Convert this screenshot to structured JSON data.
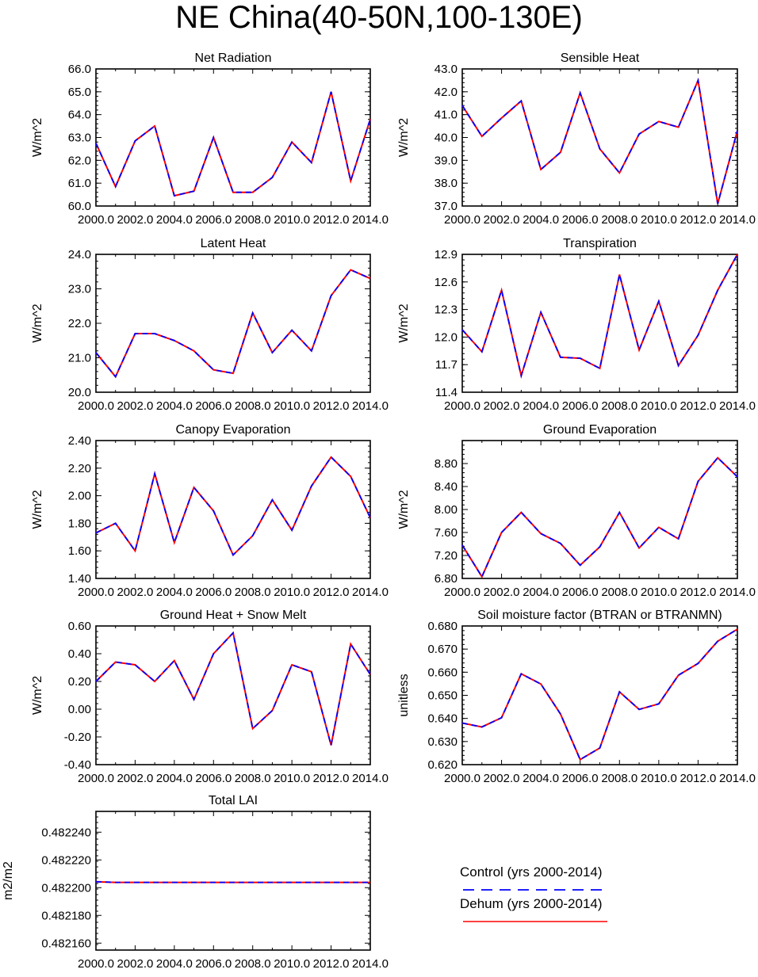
{
  "title": "NE China(40-50N,100-130E)",
  "colors": {
    "control": "#0000ff",
    "dehum": "#ff0000"
  },
  "legend": {
    "items": [
      {
        "label": "Control (yrs 2000-2014)",
        "style": "dashed",
        "color": "#0000ff"
      },
      {
        "label": "Dehum (yrs 2000-2014)",
        "style": "solid",
        "color": "#ff0000"
      }
    ]
  },
  "chart_data": [
    {
      "type": "line",
      "title": "Net Radiation",
      "ylabel": "W/m^2",
      "x": [
        2000,
        2001,
        2002,
        2003,
        2004,
        2005,
        2006,
        2007,
        2008,
        2009,
        2010,
        2011,
        2012,
        2013,
        2014
      ],
      "xticks": [
        "2000.0",
        "2002.0",
        "2004.0",
        "2006.0",
        "2008.0",
        "2010.0",
        "2012.0",
        "2014.0"
      ],
      "xlim": [
        2000,
        2014
      ],
      "ylim": [
        60.0,
        66.0
      ],
      "yticks": [
        "60.0",
        "61.0",
        "62.0",
        "63.0",
        "64.0",
        "65.0",
        "66.0"
      ],
      "series": [
        {
          "values": [
            62.75,
            60.85,
            62.85,
            63.5,
            60.45,
            60.65,
            63.0,
            60.6,
            60.6,
            61.25,
            62.8,
            61.9,
            65.0,
            61.1,
            63.8
          ]
        },
        {
          "values": [
            62.75,
            60.85,
            62.85,
            63.5,
            60.45,
            60.65,
            63.0,
            60.6,
            60.6,
            61.25,
            62.8,
            61.9,
            65.0,
            61.1,
            63.8
          ]
        }
      ]
    },
    {
      "type": "line",
      "title": "Sensible Heat",
      "ylabel": "W/m^2",
      "x": [
        2000,
        2001,
        2002,
        2003,
        2004,
        2005,
        2006,
        2007,
        2008,
        2009,
        2010,
        2011,
        2012,
        2013,
        2014
      ],
      "xticks": [
        "2000.0",
        "2002.0",
        "2004.0",
        "2006.0",
        "2008.0",
        "2010.0",
        "2012.0",
        "2014.0"
      ],
      "xlim": [
        2000,
        2014
      ],
      "ylim": [
        37.0,
        43.0
      ],
      "yticks": [
        "37.0",
        "38.0",
        "39.0",
        "40.0",
        "41.0",
        "42.0",
        "43.0"
      ],
      "series": [
        {
          "values": [
            41.4,
            40.05,
            40.85,
            41.6,
            38.6,
            39.35,
            41.95,
            39.5,
            38.45,
            40.15,
            40.7,
            40.45,
            42.5,
            37.1,
            40.3
          ]
        },
        {
          "values": [
            41.4,
            40.05,
            40.85,
            41.6,
            38.6,
            39.35,
            41.95,
            39.5,
            38.45,
            40.15,
            40.7,
            40.45,
            42.5,
            37.1,
            40.3
          ]
        }
      ]
    },
    {
      "type": "line",
      "title": "Latent Heat",
      "ylabel": "W/m^2",
      "x": [
        2000,
        2001,
        2002,
        2003,
        2004,
        2005,
        2006,
        2007,
        2008,
        2009,
        2010,
        2011,
        2012,
        2013,
        2014
      ],
      "xticks": [
        "2000.0",
        "2002.0",
        "2004.0",
        "2006.0",
        "2008.0",
        "2010.0",
        "2012.0",
        "2014.0"
      ],
      "xlim": [
        2000,
        2014
      ],
      "ylim": [
        20.0,
        24.0
      ],
      "yticks": [
        "20.0",
        "21.0",
        "22.0",
        "23.0",
        "24.0"
      ],
      "series": [
        {
          "values": [
            21.15,
            20.45,
            21.7,
            21.7,
            21.5,
            21.2,
            20.65,
            20.55,
            22.3,
            21.15,
            21.8,
            21.2,
            22.8,
            23.55,
            23.3
          ]
        },
        {
          "values": [
            21.15,
            20.45,
            21.7,
            21.7,
            21.5,
            21.2,
            20.65,
            20.55,
            22.3,
            21.15,
            21.8,
            21.2,
            22.8,
            23.55,
            23.3
          ]
        }
      ]
    },
    {
      "type": "line",
      "title": "Transpiration",
      "ylabel": "W/m^2",
      "x": [
        2000,
        2001,
        2002,
        2003,
        2004,
        2005,
        2006,
        2007,
        2008,
        2009,
        2010,
        2011,
        2012,
        2013,
        2014
      ],
      "xticks": [
        "2000.0",
        "2002.0",
        "2004.0",
        "2006.0",
        "2008.0",
        "2010.0",
        "2012.0",
        "2014.0"
      ],
      "xlim": [
        2000,
        2014
      ],
      "ylim": [
        11.4,
        12.9
      ],
      "yticks": [
        "11.4",
        "11.7",
        "12.0",
        "12.3",
        "12.6",
        "12.9"
      ],
      "series": [
        {
          "values": [
            12.08,
            11.84,
            12.51,
            11.58,
            12.27,
            11.78,
            11.77,
            11.66,
            12.68,
            11.86,
            12.39,
            11.69,
            12.02,
            12.51,
            12.9
          ]
        },
        {
          "values": [
            12.08,
            11.84,
            12.51,
            11.58,
            12.27,
            11.78,
            11.77,
            11.66,
            12.68,
            11.86,
            12.39,
            11.69,
            12.02,
            12.51,
            12.9
          ]
        }
      ]
    },
    {
      "type": "line",
      "title": "Canopy Evaporation",
      "ylabel": "W/m^2",
      "x": [
        2000,
        2001,
        2002,
        2003,
        2004,
        2005,
        2006,
        2007,
        2008,
        2009,
        2010,
        2011,
        2012,
        2013,
        2014
      ],
      "xticks": [
        "2000.0",
        "2002.0",
        "2004.0",
        "2006.0",
        "2008.0",
        "2010.0",
        "2012.0",
        "2014.0"
      ],
      "xlim": [
        2000,
        2014
      ],
      "ylim": [
        1.4,
        2.4
      ],
      "yticks": [
        "1.40",
        "1.60",
        "1.80",
        "2.00",
        "2.20",
        "2.40"
      ],
      "series": [
        {
          "values": [
            1.73,
            1.8,
            1.6,
            2.16,
            1.66,
            2.06,
            1.89,
            1.57,
            1.71,
            1.97,
            1.75,
            2.07,
            2.28,
            2.14,
            1.84
          ]
        },
        {
          "values": [
            1.73,
            1.8,
            1.6,
            2.16,
            1.66,
            2.06,
            1.89,
            1.57,
            1.71,
            1.97,
            1.75,
            2.07,
            2.28,
            2.14,
            1.84
          ]
        }
      ]
    },
    {
      "type": "line",
      "title": "Ground Evaporation",
      "ylabel": "W/m^2",
      "x": [
        2000,
        2001,
        2002,
        2003,
        2004,
        2005,
        2006,
        2007,
        2008,
        2009,
        2010,
        2011,
        2012,
        2013,
        2014
      ],
      "xticks": [
        "2000.0",
        "2002.0",
        "2004.0",
        "2006.0",
        "2008.0",
        "2010.0",
        "2012.0",
        "2014.0"
      ],
      "xlim": [
        2000,
        2014
      ],
      "ylim": [
        6.8,
        9.2
      ],
      "yticks": [
        "6.80",
        "7.20",
        "7.60",
        "8.00",
        "8.40",
        "8.80"
      ],
      "series": [
        {
          "values": [
            7.38,
            6.83,
            7.6,
            7.95,
            7.58,
            7.41,
            7.03,
            7.35,
            7.95,
            7.33,
            7.69,
            7.49,
            8.49,
            8.9,
            8.57
          ]
        },
        {
          "values": [
            7.38,
            6.83,
            7.6,
            7.95,
            7.58,
            7.41,
            7.03,
            7.35,
            7.95,
            7.33,
            7.69,
            7.49,
            8.49,
            8.9,
            8.57
          ]
        }
      ]
    },
    {
      "type": "line",
      "title": "Ground Heat + Snow Melt",
      "ylabel": "W/m^2",
      "x": [
        2000,
        2001,
        2002,
        2003,
        2004,
        2005,
        2006,
        2007,
        2008,
        2009,
        2010,
        2011,
        2012,
        2013,
        2014
      ],
      "xticks": [
        "2000.0",
        "2002.0",
        "2004.0",
        "2006.0",
        "2008.0",
        "2010.0",
        "2012.0",
        "2014.0"
      ],
      "xlim": [
        2000,
        2014
      ],
      "ylim": [
        -0.4,
        0.6
      ],
      "yticks": [
        "-0.40",
        "-0.20",
        "0.00",
        "0.20",
        "0.40",
        "0.60"
      ],
      "series": [
        {
          "values": [
            0.2,
            0.34,
            0.32,
            0.2,
            0.35,
            0.07,
            0.4,
            0.55,
            -0.14,
            -0.01,
            0.32,
            0.27,
            -0.26,
            0.47,
            0.25
          ]
        },
        {
          "values": [
            0.2,
            0.34,
            0.32,
            0.2,
            0.35,
            0.07,
            0.4,
            0.55,
            -0.14,
            -0.01,
            0.32,
            0.27,
            -0.26,
            0.47,
            0.25
          ]
        }
      ]
    },
    {
      "type": "line",
      "title": "Soil moisture factor (BTRAN or BTRANMN)",
      "ylabel": "unitless",
      "x": [
        2000,
        2001,
        2002,
        2003,
        2004,
        2005,
        2006,
        2007,
        2008,
        2009,
        2010,
        2011,
        2012,
        2013,
        2014
      ],
      "xticks": [
        "2000.0",
        "2002.0",
        "2004.0",
        "2006.0",
        "2008.0",
        "2010.0",
        "2012.0",
        "2014.0"
      ],
      "xlim": [
        2000,
        2014
      ],
      "ylim": [
        0.62,
        0.68
      ],
      "yticks": [
        "0.620",
        "0.630",
        "0.640",
        "0.650",
        "0.660",
        "0.670",
        "0.680"
      ],
      "series": [
        {
          "values": [
            0.638,
            0.6363,
            0.6403,
            0.6593,
            0.6549,
            0.6419,
            0.6222,
            0.6272,
            0.6515,
            0.6439,
            0.6463,
            0.6587,
            0.6638,
            0.6734,
            0.6786
          ]
        },
        {
          "values": [
            0.638,
            0.6363,
            0.6403,
            0.6593,
            0.6549,
            0.6419,
            0.6222,
            0.6272,
            0.6515,
            0.6439,
            0.6463,
            0.6587,
            0.6638,
            0.6734,
            0.6786
          ]
        }
      ]
    },
    {
      "type": "line",
      "title": "Total LAI",
      "ylabel": "m2/m2",
      "x": [
        2000,
        2001,
        2002,
        2003,
        2004,
        2005,
        2006,
        2007,
        2008,
        2009,
        2010,
        2011,
        2012,
        2013,
        2014
      ],
      "xticks": [
        "2000.0",
        "2002.0",
        "2004.0",
        "2006.0",
        "2008.0",
        "2010.0",
        "2012.0",
        "2014.0"
      ],
      "xlim": [
        2000,
        2014
      ],
      "ylim": [
        0.482155,
        0.482255
      ],
      "yticks": [
        "0.482160",
        "0.482180",
        "0.482200",
        "0.482220",
        "0.482240"
      ],
      "series": [
        {
          "values": [
            0.4822043,
            0.4822038,
            0.4822038,
            0.4822038,
            0.4822038,
            0.4822038,
            0.4822038,
            0.4822038,
            0.4822038,
            0.4822038,
            0.4822038,
            0.4822038,
            0.4822038,
            0.4822038,
            0.4822038
          ]
        },
        {
          "values": [
            0.4822043,
            0.4822038,
            0.4822038,
            0.4822038,
            0.4822038,
            0.4822038,
            0.4822038,
            0.4822038,
            0.4822038,
            0.4822038,
            0.4822038,
            0.4822038,
            0.4822038,
            0.4822038,
            0.4822038
          ]
        }
      ]
    }
  ]
}
